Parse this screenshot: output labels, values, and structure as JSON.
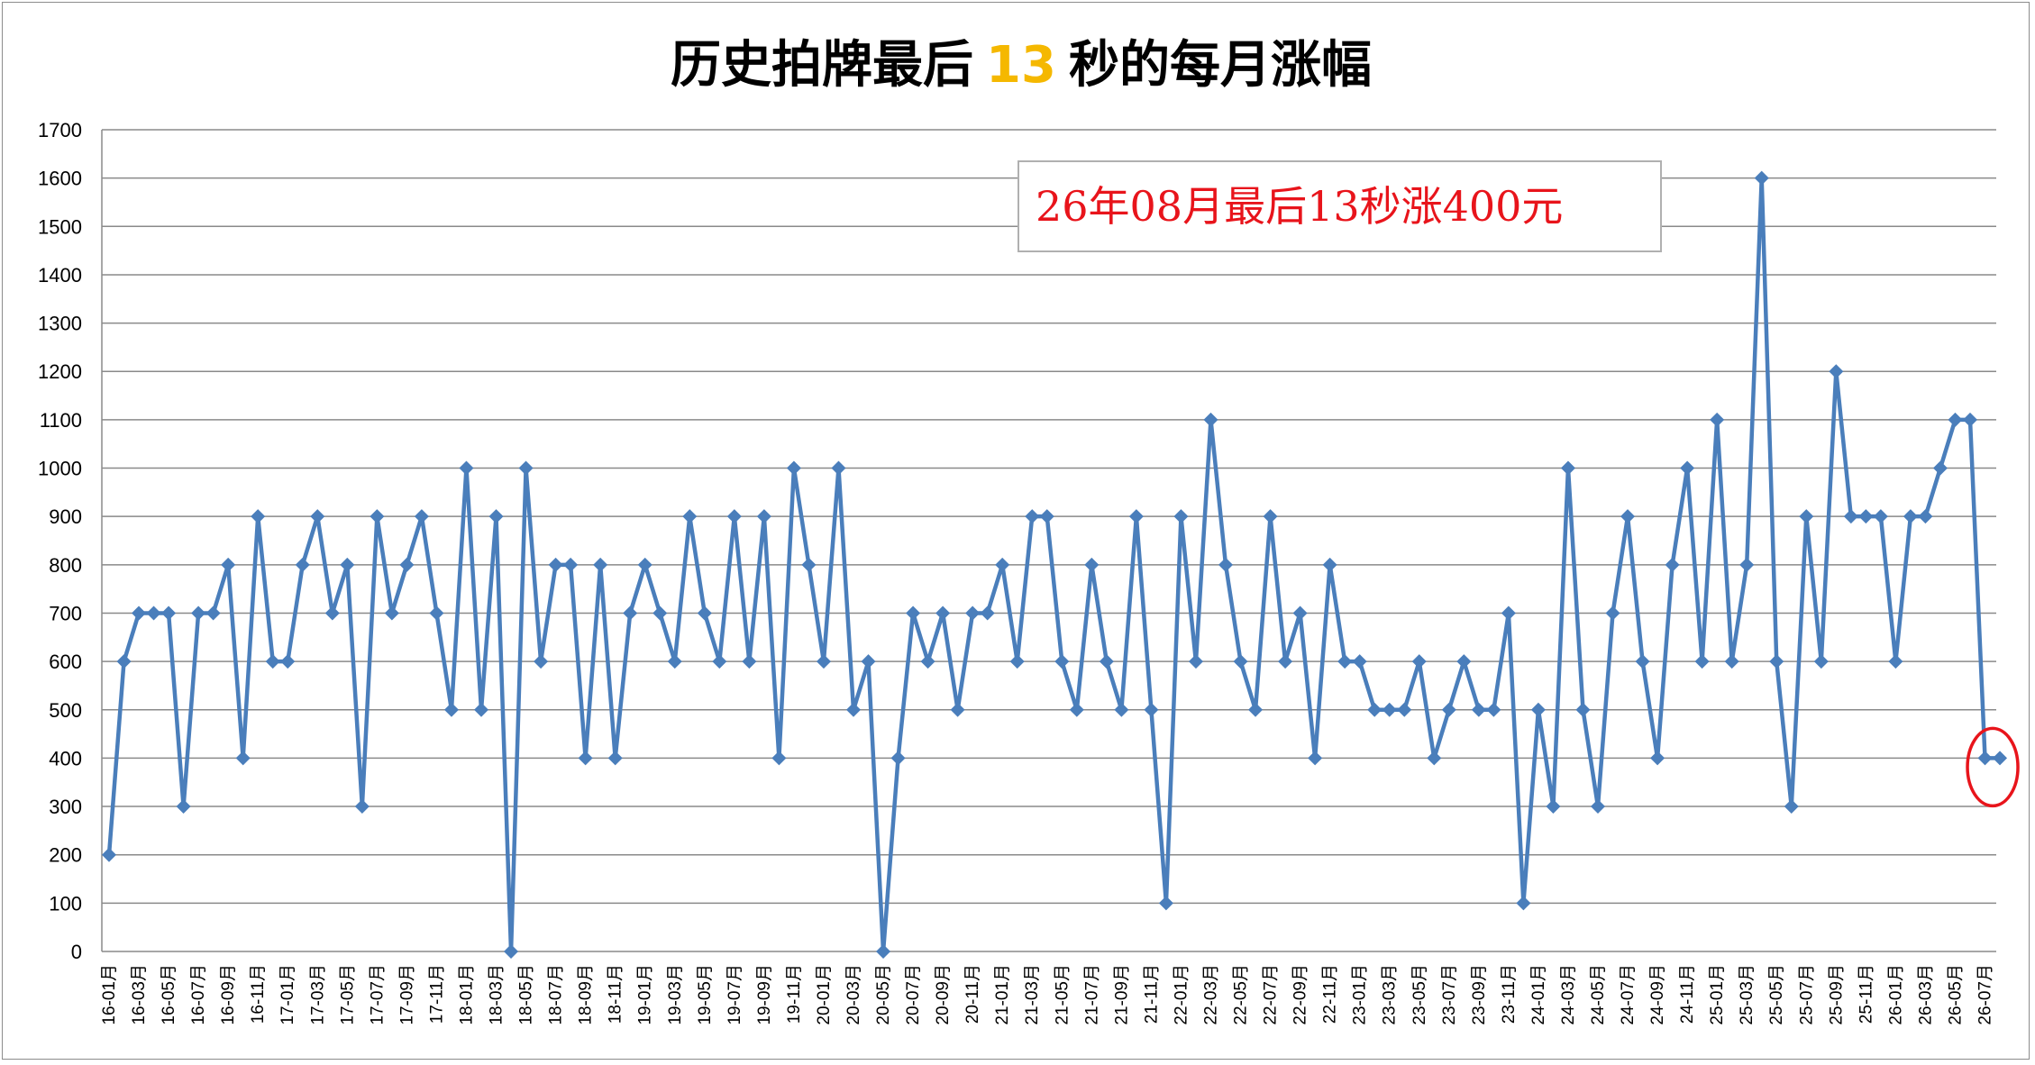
{
  "chart_data": {
    "type": "line",
    "title_parts": [
      "历史拍牌最后",
      "13",
      "秒的每月涨幅"
    ],
    "annotation": "26年08月最后13秒涨400元",
    "ylim": [
      0,
      1700
    ],
    "yticks": [
      0,
      100,
      200,
      300,
      400,
      500,
      600,
      700,
      800,
      900,
      1000,
      1100,
      1200,
      1300,
      1400,
      1500,
      1600,
      1700
    ],
    "grid": true,
    "legend": "none",
    "colors": {
      "line": "#4a7ebb",
      "highlight": "#e8141b",
      "title_highlight": "#f5b800"
    },
    "x_tick_labels": [
      "16-01月",
      "16-03月",
      "16-05月",
      "16-07月",
      "16-09月",
      "16-11月",
      "17-01月",
      "17-03月",
      "17-05月",
      "17-07月",
      "17-09月",
      "17-11月",
      "18-01月",
      "18-03月",
      "18-05月",
      "18-07月",
      "18-09月",
      "18-11月",
      "19-01月",
      "19-03月",
      "19-05月",
      "19-07月",
      "19-09月",
      "19-11月",
      "20-01月",
      "20-03月",
      "20-05月",
      "20-07月",
      "20-09月",
      "20-11月",
      "21-01月",
      "21-03月",
      "21-05月",
      "21-07月",
      "21-09月",
      "21-11月",
      "22-01月",
      "22-03月",
      "22-05月",
      "22-07月",
      "22-09月",
      "22-11月",
      "23-01月",
      "23-03月",
      "23-05月",
      "23-07月",
      "23-09月",
      "23-11月",
      "24-01月",
      "24-03月",
      "24-05月",
      "24-07月",
      "24-09月",
      "24-11月",
      "25-01月",
      "25-03月",
      "25-05月",
      "25-07月",
      "25-09月",
      "25-11月",
      "26-01月",
      "26-03月",
      "26-05月",
      "26-07月"
    ],
    "x": [
      "16-01月",
      "16-02月",
      "16-03月",
      "16-04月",
      "16-05月",
      "16-06月",
      "16-07月",
      "16-08月",
      "16-09月",
      "16-10月",
      "16-11月",
      "16-12月",
      "17-01月",
      "17-02月",
      "17-03月",
      "17-04月",
      "17-05月",
      "17-06月",
      "17-07月",
      "17-08月",
      "17-09月",
      "17-10月",
      "17-11月",
      "17-12月",
      "18-01月",
      "18-02月",
      "18-03月",
      "18-04月",
      "18-05月",
      "18-06月",
      "18-07月",
      "18-08月",
      "18-09月",
      "18-10月",
      "18-11月",
      "18-12月",
      "19-01月",
      "19-02月",
      "19-03月",
      "19-04月",
      "19-05月",
      "19-06月",
      "19-07月",
      "19-08月",
      "19-09月",
      "19-10月",
      "19-11月",
      "19-12月",
      "20-01月",
      "20-02月",
      "20-03月",
      "20-04月",
      "20-05月",
      "20-06月",
      "20-07月",
      "20-08月",
      "20-09月",
      "20-10月",
      "20-11月",
      "20-12月",
      "21-01月",
      "21-02月",
      "21-03月",
      "21-04月",
      "21-05月",
      "21-06月",
      "21-07月",
      "21-08月",
      "21-09月",
      "21-10月",
      "21-11月",
      "21-12月",
      "22-01月",
      "22-02月",
      "22-03月",
      "22-04月",
      "22-05月",
      "22-06月",
      "22-07月",
      "22-08月",
      "22-09月",
      "22-10月",
      "22-11月",
      "22-12月",
      "23-01月",
      "23-02月",
      "23-03月",
      "23-04月",
      "23-05月",
      "23-06月",
      "23-07月",
      "23-08月",
      "23-09月",
      "23-10月",
      "23-11月",
      "23-12月",
      "24-01月",
      "24-02月",
      "24-03月",
      "24-04月",
      "24-05月",
      "24-06月",
      "24-07月",
      "24-08月",
      "24-09月",
      "24-10月",
      "24-11月",
      "24-12月",
      "25-01月",
      "25-02月",
      "25-03月",
      "25-04月",
      "25-05月",
      "25-06月",
      "25-07月",
      "25-08月",
      "25-09月",
      "25-10月",
      "25-11月",
      "25-12月",
      "26-01月",
      "26-02月",
      "26-03月",
      "26-04月",
      "26-05月",
      "26-06月",
      "26-07月",
      "26-08月"
    ],
    "series": [
      {
        "values": [
          200,
          600,
          700,
          700,
          700,
          300,
          700,
          700,
          800,
          400,
          900,
          600,
          600,
          800,
          900,
          700,
          800,
          300,
          900,
          700,
          800,
          900,
          700,
          500,
          1000,
          500,
          900,
          0,
          1000,
          600,
          800,
          800,
          400,
          800,
          400,
          700,
          800,
          700,
          600,
          900,
          700,
          600,
          900,
          600,
          900,
          400,
          1000,
          800,
          600,
          1000,
          500,
          600,
          0,
          400,
          700,
          600,
          700,
          500,
          700,
          700,
          800,
          600,
          900,
          900,
          600,
          500,
          800,
          600,
          500,
          900,
          500,
          100,
          900,
          600,
          1100,
          800,
          600,
          500,
          900,
          600,
          700,
          400,
          800,
          600,
          600,
          500,
          500,
          500,
          600,
          400,
          500,
          600,
          500,
          500,
          700,
          100,
          500,
          300,
          1000,
          500,
          300,
          700,
          900,
          600,
          400,
          800,
          1000,
          600,
          1100,
          600,
          800,
          1600,
          600,
          300,
          900,
          600,
          1200,
          900,
          900,
          900,
          600,
          900,
          900,
          1000,
          1100,
          1100,
          400,
          400
        ]
      }
    ]
  }
}
